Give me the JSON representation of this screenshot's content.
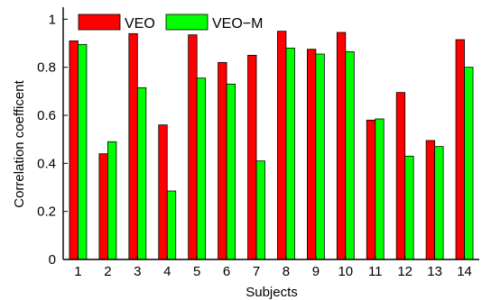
{
  "chart_data": {
    "type": "bar",
    "xlabel": "Subjects",
    "ylabel": "Correlation coefficent",
    "ylim": [
      0,
      1.05
    ],
    "yticks": [
      0,
      0.2,
      0.4,
      0.6,
      0.8,
      1
    ],
    "ytick_labels": [
      "0",
      "0.2",
      "0.4",
      "0.6",
      "0.8",
      "1"
    ],
    "categories": [
      "1",
      "2",
      "3",
      "4",
      "5",
      "6",
      "7",
      "8",
      "9",
      "10",
      "11",
      "12",
      "13",
      "14"
    ],
    "legend_position": "top-left",
    "grid": false,
    "series": [
      {
        "name": "VEO",
        "color": "#ff0000",
        "values": [
          0.91,
          0.44,
          0.94,
          0.56,
          0.935,
          0.82,
          0.85,
          0.95,
          0.875,
          0.945,
          0.58,
          0.695,
          0.495,
          0.915
        ]
      },
      {
        "name": "VEO−M",
        "color": "#00ff00",
        "values": [
          0.895,
          0.49,
          0.715,
          0.285,
          0.755,
          0.73,
          0.41,
          0.88,
          0.855,
          0.865,
          0.585,
          0.43,
          0.47,
          0.8
        ]
      }
    ]
  }
}
